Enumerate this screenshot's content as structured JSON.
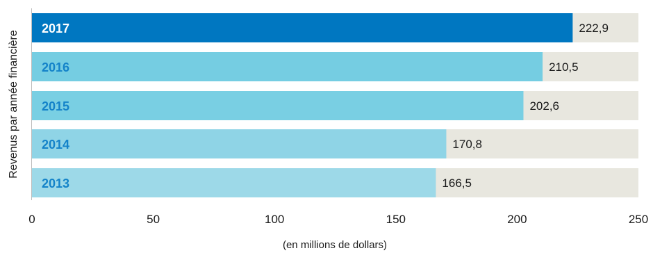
{
  "chart_data": {
    "type": "bar",
    "orientation": "horizontal",
    "categories": [
      "2017",
      "2016",
      "2015",
      "2014",
      "2013"
    ],
    "values": [
      222.9,
      210.5,
      202.6,
      170.8,
      166.5
    ],
    "value_labels": [
      "222,9",
      "210,5",
      "202,6",
      "170,8",
      "166,5"
    ],
    "title": "",
    "ylabel": "Revenus par année financière",
    "xlabel": "(en millions de dollars)",
    "xlim": [
      0,
      250
    ],
    "xticks": [
      0,
      50,
      100,
      150,
      200,
      250
    ],
    "xtick_labels": [
      "0",
      "50",
      "100",
      "150",
      "200",
      "250"
    ],
    "grid": false,
    "colors": {
      "highlight_bar": "#0077c1",
      "bars": [
        "#0077c1",
        "#75cde2",
        "#79cfe3",
        "#8fd4e6",
        "#9dd9e8"
      ],
      "track": "#e8e7df",
      "highlight_label": "#ffffff",
      "category_label": "#1483c9",
      "axis": "#bdbdbd"
    }
  }
}
